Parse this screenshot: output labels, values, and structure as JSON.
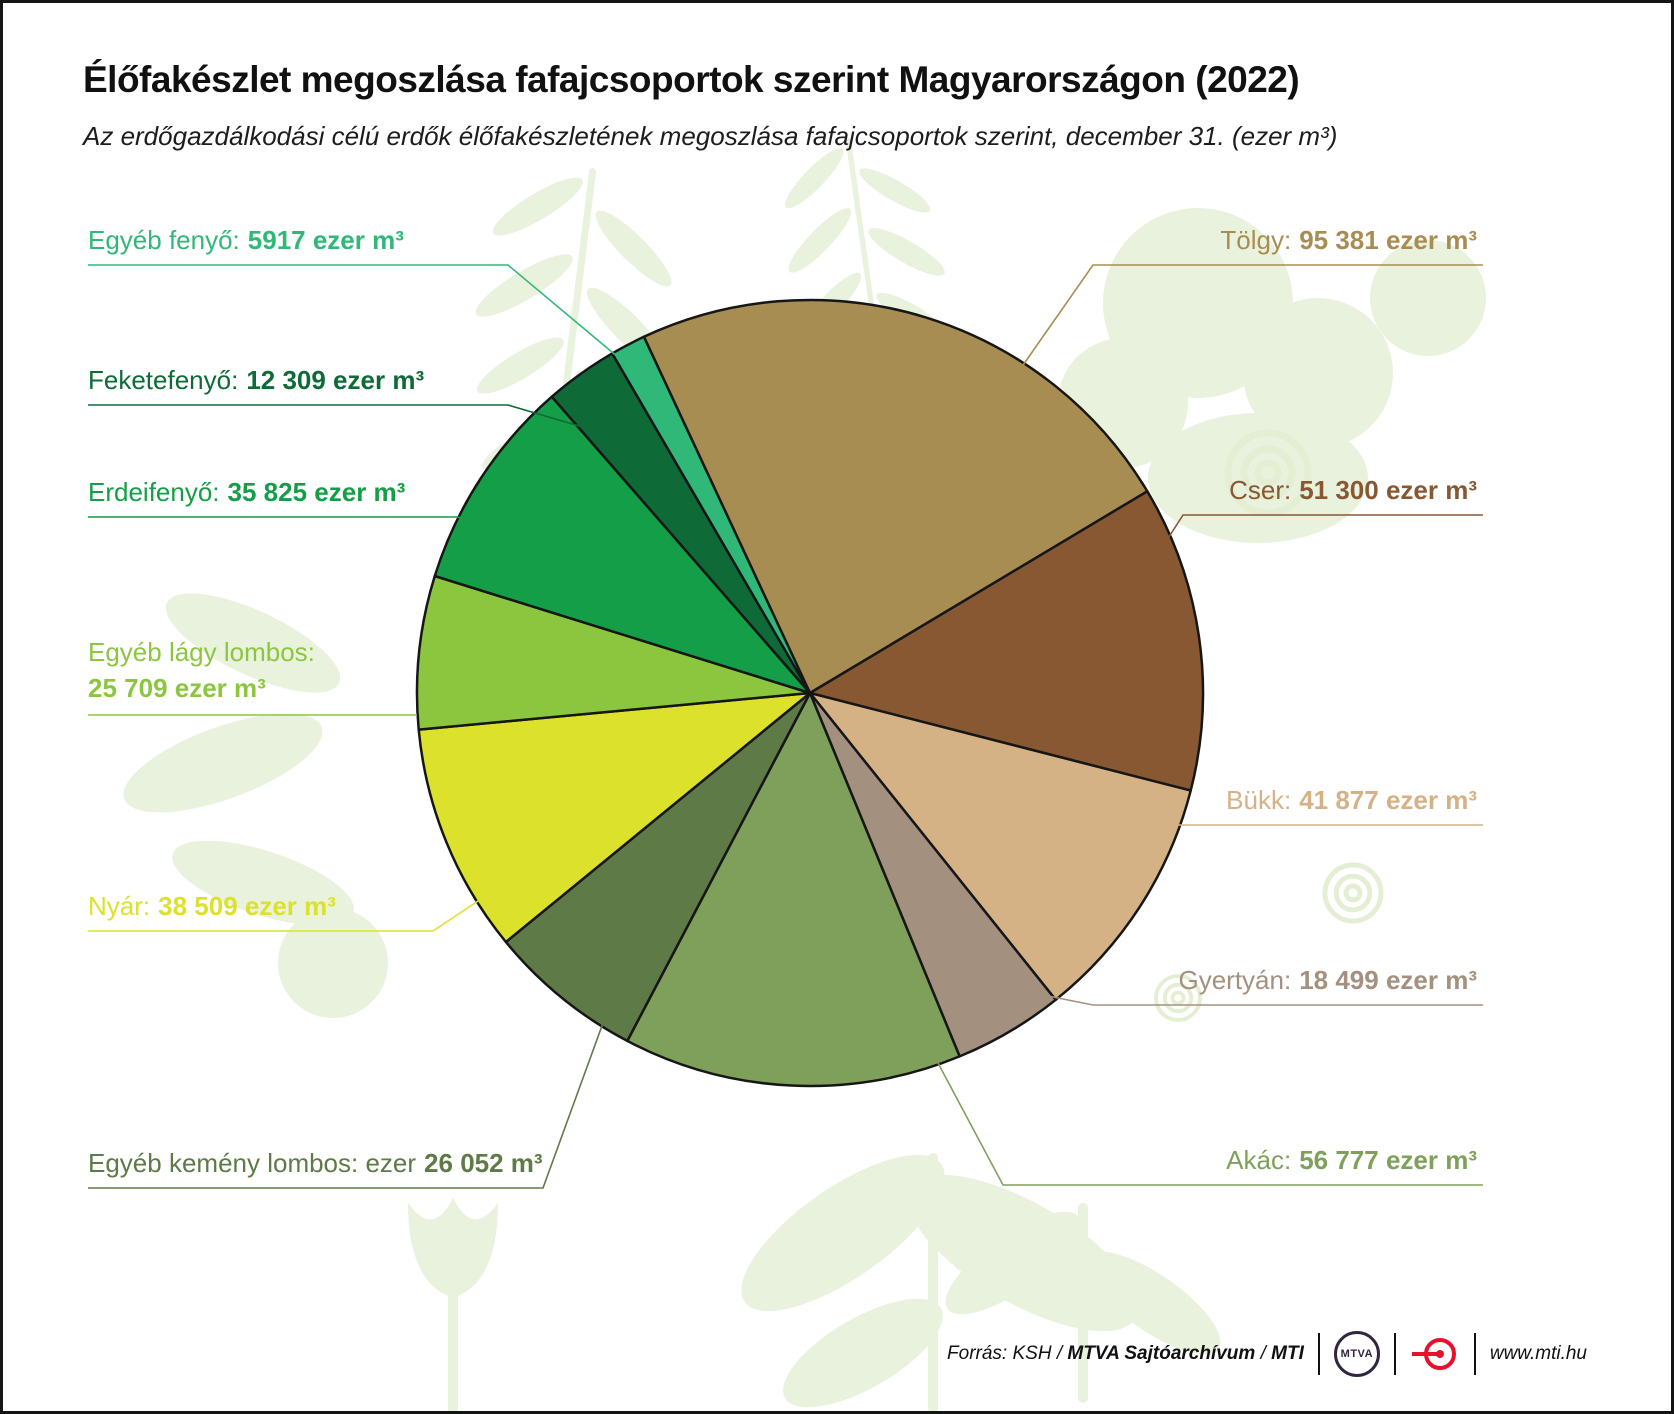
{
  "header": {
    "title": "Élőfakészlet megoszlása fafajcsoportok szerint Magyarországon (2022)",
    "subtitle": "Az erdőgazdálkodási célú erdők élőfakészletének megoszlása fafajcsoportok szerint, december 31. (ezer m³)"
  },
  "chart_data": {
    "type": "pie",
    "unit": "ezer m³",
    "rotation_deg": -25,
    "direction": "clockwise",
    "legend_position": "callouts-around-pie",
    "slices": [
      {
        "label": "Tölgy",
        "value": 95381,
        "callout_name": "Tölgy:",
        "callout_value": "95 381 ezer m³",
        "color": "#a88d52"
      },
      {
        "label": "Cser",
        "value": 51300,
        "callout_name": "Cser:",
        "callout_value": "51 300 ezer m³",
        "color": "#875832"
      },
      {
        "label": "Bükk",
        "value": 41877,
        "callout_name": "Bükk:",
        "callout_value": "41 877 ezer m³",
        "color": "#d5b285"
      },
      {
        "label": "Gyertyán",
        "value": 18499,
        "callout_name": "Gyertyán:",
        "callout_value": "18 499 ezer m³",
        "color": "#a3907f"
      },
      {
        "label": "Akác",
        "value": 56777,
        "callout_name": "Akác:",
        "callout_value": "56 777 ezer m³",
        "color": "#7fa05a"
      },
      {
        "label": "Egyéb kemény lombos",
        "value": 26052,
        "callout_name": "Egyéb kemény lombos: ezer",
        "callout_value": "26 052 m³",
        "color": "#5e7a47"
      },
      {
        "label": "Nyár",
        "value": 38509,
        "callout_name": "Nyár:",
        "callout_value": "38 509 ezer m³",
        "color": "#dce22b"
      },
      {
        "label": "Egyéb lágy lombos",
        "value": 25709,
        "callout_name": "Egyéb lágy lombos:",
        "callout_value": "25 709 ezer m³",
        "color": "#8cc63f"
      },
      {
        "label": "Erdeifenyő",
        "value": 35825,
        "callout_name": "Erdeifenyő:",
        "callout_value": "35 825 ezer m³",
        "color": "#149e47"
      },
      {
        "label": "Feketefenyő",
        "value": 12309,
        "callout_name": "Feketefenyő:",
        "callout_value": "12 309 ezer m³",
        "color": "#0e6b38"
      },
      {
        "label": "Egyéb fenyő",
        "value": 5917,
        "callout_name": "Egyéb fenyő:",
        "callout_value": "5917 ezer m³",
        "color": "#30b878"
      }
    ]
  },
  "footer": {
    "source_prefix": "Forrás: KSH / ",
    "source_archive": "MTVA Sajtóarchívum",
    "source_sep": " / ",
    "source_agency": "MTI",
    "mtva_logo_text": "MTVA",
    "website": "www.mti.hu"
  }
}
